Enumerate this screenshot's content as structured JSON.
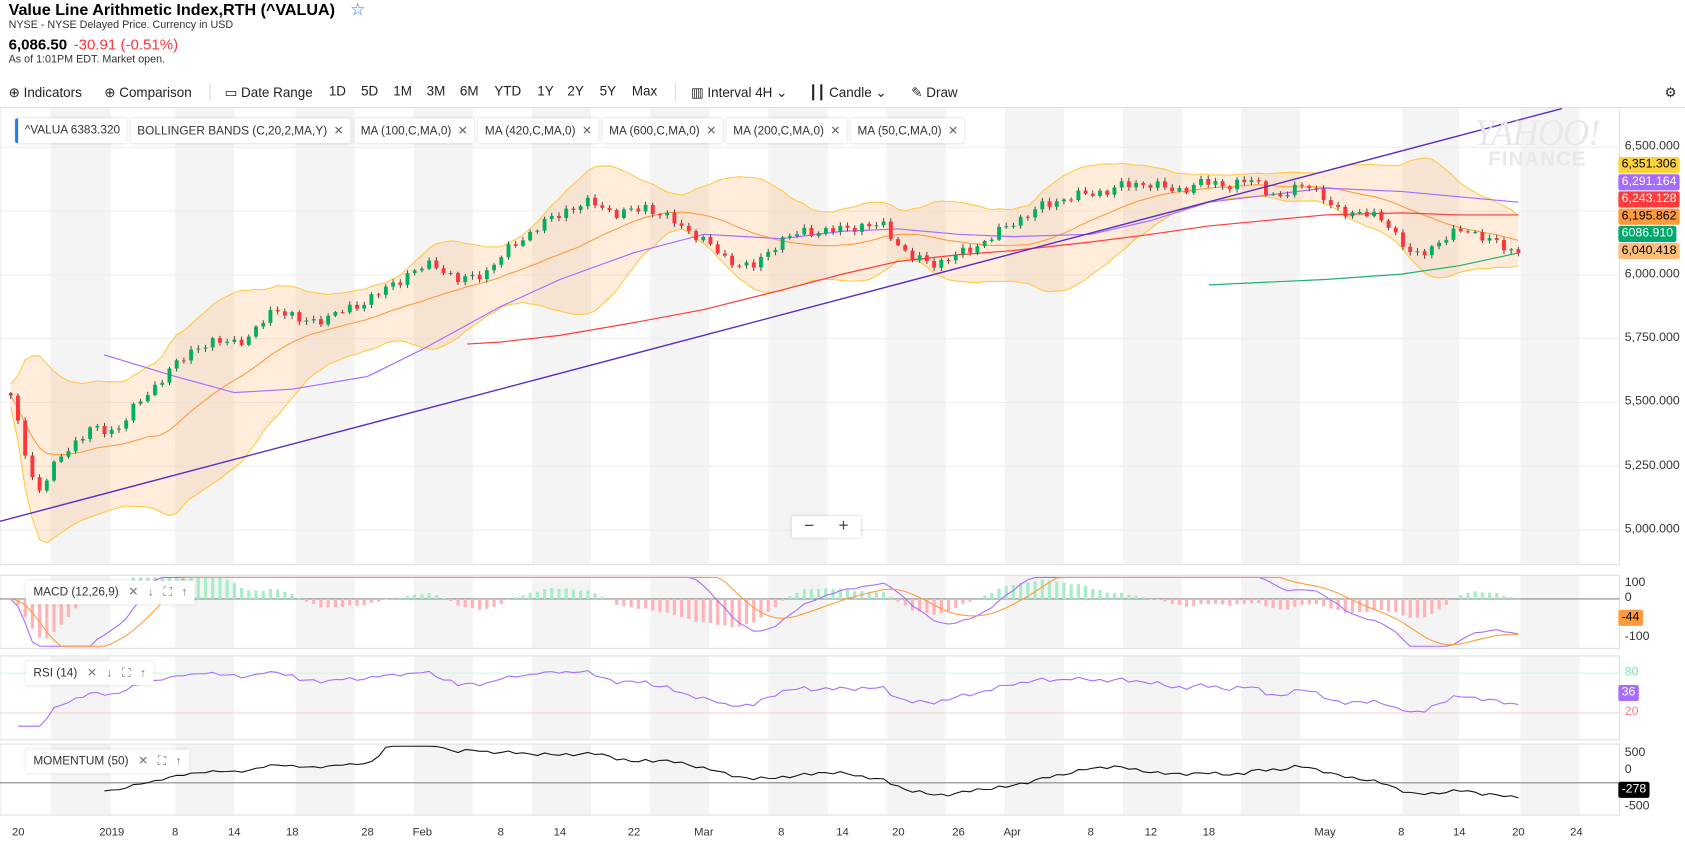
{
  "header": {
    "title": "Value Line Arithmetic Index,RTH (^VALUA)",
    "exchange": "NYSE - NYSE Delayed Price. Currency in USD",
    "price": "6,086.50",
    "change": "-30.91 (-0.51%)",
    "as_of": "As of 1:01PM EDT. Market open."
  },
  "toolbar": {
    "indicators": "Indicators",
    "comparison": "Comparison",
    "date_range": "Date Range",
    "ranges": [
      "1D",
      "5D",
      "1M",
      "3M",
      "6M",
      "YTD",
      "1Y",
      "2Y",
      "5Y",
      "Max"
    ],
    "interval_label": "Interval",
    "interval_value": "4H",
    "chart_type": "Candle",
    "draw": "Draw"
  },
  "legend": {
    "symbol": "^VALUA",
    "symbol_value": "6383.320",
    "studies": [
      "BOLLINGER BANDS (C,20,2,MA,Y)",
      "MA (100,C,MA,0)",
      "MA (420,C,MA,0)",
      "MA (600,C,MA,0)",
      "MA (200,C,MA,0)",
      "MA (50,C,MA,0)"
    ]
  },
  "watermark": {
    "line1": "YAHOO!",
    "line2": "FINANCE"
  },
  "zoom_controls": {
    "minus": "−",
    "plus": "+"
  },
  "chart_data": {
    "type": "candlestick",
    "x_range": [
      "2018-12-17",
      "2019-05-20"
    ],
    "x_ticks": [
      {
        "date": "2018-12-20",
        "label": "20"
      },
      {
        "date": "2019-01-01",
        "label": "2019"
      },
      {
        "date": "2019-01-08",
        "label": "8"
      },
      {
        "date": "2019-01-14",
        "label": "14"
      },
      {
        "date": "2019-01-18",
        "label": "18"
      },
      {
        "date": "2019-01-28",
        "label": "28"
      },
      {
        "date": "2019-02-01",
        "label": "Feb"
      },
      {
        "date": "2019-02-08",
        "label": "8"
      },
      {
        "date": "2019-02-14",
        "label": "14"
      },
      {
        "date": "2019-02-22",
        "label": "22"
      },
      {
        "date": "2019-03-01",
        "label": "Mar"
      },
      {
        "date": "2019-03-08",
        "label": "8"
      },
      {
        "date": "2019-03-14",
        "label": "14"
      },
      {
        "date": "2019-03-20",
        "label": "20"
      },
      {
        "date": "2019-03-26",
        "label": "26"
      },
      {
        "date": "2019-04-01",
        "label": "Apr"
      },
      {
        "date": "2019-04-08",
        "label": "8"
      },
      {
        "date": "2019-04-12",
        "label": "12"
      },
      {
        "date": "2019-04-18",
        "label": "18"
      },
      {
        "date": "2019-05-01",
        "label": "May"
      },
      {
        "date": "2019-05-08",
        "label": "8"
      },
      {
        "date": "2019-05-14",
        "label": "14"
      },
      {
        "date": "2019-05-20",
        "label": "20"
      },
      {
        "date": "2019-05-24",
        "label": "24"
      }
    ],
    "y_ticks": [
      "6,500.000",
      "6,000.000",
      "5,750.000",
      "5,500.000",
      "5,250.000",
      "5,000.000"
    ],
    "y_tick_values": [
      6500,
      6000,
      5750,
      5500,
      5250,
      5000
    ],
    "closes_approx": [
      5518,
      5139,
      5307,
      5392,
      5392,
      5518,
      5623,
      5720,
      5737,
      5750,
      5876,
      5813,
      5834,
      5876,
      5931,
      6003,
      6045,
      5973,
      6015,
      6117,
      6192,
      6256,
      6285,
      6235,
      6268,
      6213,
      6150,
      6066,
      6024,
      6129,
      6171,
      6171,
      6192,
      6192,
      6066,
      6045,
      6087,
      6142,
      6213,
      6268,
      6306,
      6319,
      6348,
      6361,
      6327,
      6361,
      6353,
      6369,
      6298,
      6369,
      6256,
      6243,
      6213,
      6066,
      6129,
      6184,
      6129,
      6086
    ],
    "moving_averages": [
      {
        "color": "#a66cff",
        "points": [
          [
            "2018-12-31",
            5687
          ],
          [
            "2019-01-08",
            5602
          ],
          [
            "2019-01-14",
            5539
          ],
          [
            "2019-01-18",
            5552
          ],
          [
            "2019-01-28",
            5602
          ],
          [
            "2019-02-01",
            5708
          ],
          [
            "2019-02-08",
            5876
          ],
          [
            "2019-02-14",
            5982
          ],
          [
            "2019-02-22",
            6087
          ],
          [
            "2019-03-01",
            6159
          ],
          [
            "2019-03-08",
            6142
          ],
          [
            "2019-03-14",
            6171
          ],
          [
            "2019-03-20",
            6180
          ],
          [
            "2019-03-26",
            6159
          ],
          [
            "2019-04-01",
            6150
          ],
          [
            "2019-04-08",
            6159
          ],
          [
            "2019-04-12",
            6213
          ],
          [
            "2019-04-18",
            6285
          ],
          [
            "2019-05-01",
            6340
          ],
          [
            "2019-05-08",
            6327
          ],
          [
            "2019-05-14",
            6306
          ],
          [
            "2019-05-20",
            6285
          ]
        ]
      },
      {
        "color": "#ff3b3b",
        "points": [
          [
            "2019-02-05",
            5729
          ],
          [
            "2019-02-08",
            5737
          ],
          [
            "2019-02-14",
            5763
          ],
          [
            "2019-02-22",
            5813
          ],
          [
            "2019-03-01",
            5864
          ],
          [
            "2019-03-08",
            5940
          ],
          [
            "2019-03-14",
            6003
          ],
          [
            "2019-03-20",
            6053
          ],
          [
            "2019-03-26",
            6079
          ],
          [
            "2019-04-01",
            6095
          ],
          [
            "2019-04-08",
            6129
          ],
          [
            "2019-04-12",
            6159
          ],
          [
            "2019-04-18",
            6192
          ],
          [
            "2019-05-01",
            6235
          ],
          [
            "2019-05-08",
            6243
          ],
          [
            "2019-05-14",
            6235
          ],
          [
            "2019-05-20",
            6235
          ]
        ]
      },
      {
        "color": "#1fb36b",
        "points": [
          [
            "2019-04-18",
            5961
          ],
          [
            "2019-05-01",
            5982
          ],
          [
            "2019-05-08",
            6003
          ],
          [
            "2019-05-14",
            6036
          ],
          [
            "2019-05-20",
            6086
          ]
        ]
      }
    ],
    "trendline": {
      "color": "#5b2bc4",
      "from": [
        "2018-12-17",
        5029
      ],
      "to": [
        "2019-05-23",
        6652
      ]
    },
    "price_badges": [
      {
        "value": "6,351.306",
        "color": "#fcd23a",
        "text": "#000"
      },
      {
        "value": "6,291.164",
        "color": "#a66cff",
        "text": "#fff"
      },
      {
        "value": "6,243.128",
        "color": "#ff3b3b",
        "text": "#fff"
      },
      {
        "value": "6,195.862",
        "color": "#ff9a3c",
        "text": "#000"
      },
      {
        "value": "6,040.418",
        "color": "#ffbd7a",
        "text": "#000"
      },
      {
        "value": "6086.910",
        "color": "#00a86b",
        "text": "#fff"
      }
    ],
    "up_color": "#00b061",
    "down_color": "#ff333a",
    "panels": [
      {
        "label": "MACD (12,26,9)",
        "ticks": [
          "100",
          "0",
          "-100"
        ],
        "badge": "-44",
        "badge_color": "#ff9a3c"
      },
      {
        "label": "RSI (14)",
        "ticks": [
          "80",
          "20"
        ],
        "badge": "36",
        "badge_color": "#a66cff"
      },
      {
        "label": "MOMENTUM (50)",
        "ticks": [
          "500",
          "0",
          "-500"
        ],
        "badge": "-278",
        "badge_color": "#000000"
      }
    ]
  }
}
